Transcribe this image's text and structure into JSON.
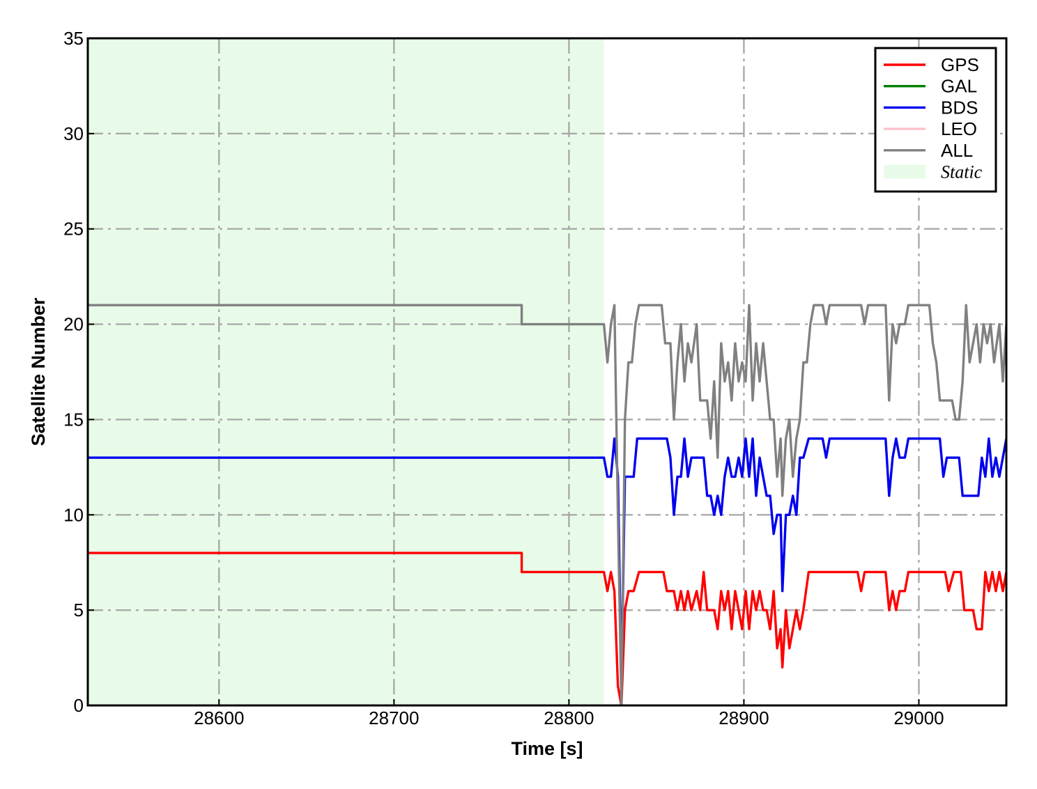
{
  "chart_data": {
    "type": "line",
    "title": "",
    "xlabel": "Time [s]",
    "ylabel": "Satellite Number",
    "xlim": [
      28525,
      29050
    ],
    "ylim": [
      0,
      35
    ],
    "xticks": [
      28600,
      28700,
      28800,
      28900,
      29000
    ],
    "yticks": [
      0,
      5,
      10,
      15,
      20,
      25,
      30,
      35
    ],
    "grid": true,
    "legend_position": "top-right",
    "static_region": {
      "label": "Static",
      "x_start": 28525,
      "x_end": 28820,
      "color": "#e8fbe8"
    },
    "series": [
      {
        "name": "GPS",
        "color": "#ff0000",
        "points": [
          [
            28525,
            8
          ],
          [
            28773,
            8
          ],
          [
            28773,
            7
          ],
          [
            28820,
            7
          ],
          [
            28822,
            6
          ],
          [
            28824,
            7
          ],
          [
            28826,
            6
          ],
          [
            28828,
            1
          ],
          [
            28830,
            0
          ],
          [
            28832,
            5
          ],
          [
            28834,
            6
          ],
          [
            28837,
            6
          ],
          [
            28840,
            7
          ],
          [
            28854,
            7
          ],
          [
            28856,
            6
          ],
          [
            28860,
            6
          ],
          [
            28862,
            5
          ],
          [
            28864,
            6
          ],
          [
            28866,
            5
          ],
          [
            28868,
            6
          ],
          [
            28870,
            5
          ],
          [
            28873,
            6
          ],
          [
            28875,
            5
          ],
          [
            28877,
            7
          ],
          [
            28879,
            5
          ],
          [
            28883,
            5
          ],
          [
            28885,
            4
          ],
          [
            28887,
            6
          ],
          [
            28889,
            5
          ],
          [
            28891,
            6
          ],
          [
            28893,
            4
          ],
          [
            28895,
            6
          ],
          [
            28897,
            5
          ],
          [
            28899,
            4
          ],
          [
            28901,
            6
          ],
          [
            28903,
            4
          ],
          [
            28905,
            6
          ],
          [
            28907,
            5
          ],
          [
            28909,
            6
          ],
          [
            28911,
            5
          ],
          [
            28913,
            5
          ],
          [
            28915,
            4
          ],
          [
            28917,
            6
          ],
          [
            28919,
            3
          ],
          [
            28921,
            4
          ],
          [
            28922,
            2
          ],
          [
            28924,
            5
          ],
          [
            28926,
            3
          ],
          [
            28928,
            4
          ],
          [
            28930,
            5
          ],
          [
            28932,
            4
          ],
          [
            28934,
            5
          ],
          [
            28937,
            7
          ],
          [
            28965,
            7
          ],
          [
            28967,
            6
          ],
          [
            28969,
            7
          ],
          [
            28981,
            7
          ],
          [
            28983,
            5
          ],
          [
            28985,
            6
          ],
          [
            28987,
            5
          ],
          [
            28989,
            6
          ],
          [
            28992,
            6
          ],
          [
            28994,
            7
          ],
          [
            29015,
            7
          ],
          [
            29017,
            6
          ],
          [
            29020,
            7
          ],
          [
            29024,
            7
          ],
          [
            29026,
            5
          ],
          [
            29031,
            5
          ],
          [
            29033,
            4
          ],
          [
            29036,
            4
          ],
          [
            29038,
            7
          ],
          [
            29040,
            6
          ],
          [
            29042,
            7
          ],
          [
            29044,
            6
          ],
          [
            29046,
            7
          ],
          [
            29048,
            6
          ],
          [
            29050,
            7
          ]
        ]
      },
      {
        "name": "GAL",
        "color": "#007f00",
        "points": []
      },
      {
        "name": "BDS",
        "color": "#0000ee",
        "points": [
          [
            28525,
            13
          ],
          [
            28820,
            13
          ],
          [
            28822,
            12
          ],
          [
            28824,
            12
          ],
          [
            28826,
            14
          ],
          [
            28828,
            12
          ],
          [
            28830,
            1
          ],
          [
            28832,
            12
          ],
          [
            28834,
            12
          ],
          [
            28837,
            12
          ],
          [
            28839,
            14
          ],
          [
            28856,
            14
          ],
          [
            28858,
            13
          ],
          [
            28860,
            10
          ],
          [
            28862,
            12
          ],
          [
            28864,
            12
          ],
          [
            28866,
            14
          ],
          [
            28868,
            12
          ],
          [
            28870,
            13
          ],
          [
            28877,
            13
          ],
          [
            28879,
            11
          ],
          [
            28881,
            11
          ],
          [
            28883,
            10
          ],
          [
            28885,
            11
          ],
          [
            28887,
            10
          ],
          [
            28889,
            12
          ],
          [
            28891,
            13
          ],
          [
            28893,
            12
          ],
          [
            28895,
            12
          ],
          [
            28897,
            13
          ],
          [
            28899,
            12
          ],
          [
            28901,
            14
          ],
          [
            28903,
            12
          ],
          [
            28905,
            14
          ],
          [
            28907,
            11
          ],
          [
            28909,
            13
          ],
          [
            28911,
            12
          ],
          [
            28913,
            11
          ],
          [
            28915,
            11
          ],
          [
            28917,
            9
          ],
          [
            28919,
            10
          ],
          [
            28921,
            10
          ],
          [
            28922,
            6
          ],
          [
            28924,
            10
          ],
          [
            28926,
            10
          ],
          [
            28928,
            11
          ],
          [
            28930,
            10
          ],
          [
            28932,
            13
          ],
          [
            28934,
            13
          ],
          [
            28937,
            14
          ],
          [
            28945,
            14
          ],
          [
            28947,
            13
          ],
          [
            28949,
            14
          ],
          [
            28981,
            14
          ],
          [
            28983,
            11
          ],
          [
            28985,
            13
          ],
          [
            28987,
            14
          ],
          [
            28989,
            13
          ],
          [
            28992,
            13
          ],
          [
            28994,
            14
          ],
          [
            29012,
            14
          ],
          [
            29014,
            12
          ],
          [
            29016,
            13
          ],
          [
            29023,
            13
          ],
          [
            29025,
            11
          ],
          [
            29034,
            11
          ],
          [
            29036,
            13
          ],
          [
            29038,
            12
          ],
          [
            29040,
            14
          ],
          [
            29042,
            12
          ],
          [
            29044,
            13
          ],
          [
            29046,
            12
          ],
          [
            29048,
            13
          ],
          [
            29050,
            14
          ]
        ]
      },
      {
        "name": "LEO",
        "color": "#ffc0cb",
        "points": []
      },
      {
        "name": "ALL",
        "color": "#808080",
        "points": [
          [
            28525,
            21
          ],
          [
            28773,
            21
          ],
          [
            28773,
            20
          ],
          [
            28820,
            20
          ],
          [
            28822,
            18
          ],
          [
            28824,
            20
          ],
          [
            28826,
            21
          ],
          [
            28828,
            10
          ],
          [
            28830,
            0
          ],
          [
            28832,
            15
          ],
          [
            28834,
            18
          ],
          [
            28836,
            18
          ],
          [
            28838,
            20
          ],
          [
            28840,
            21
          ],
          [
            28853,
            21
          ],
          [
            28855,
            19
          ],
          [
            28858,
            19
          ],
          [
            28860,
            15
          ],
          [
            28862,
            18
          ],
          [
            28864,
            20
          ],
          [
            28866,
            17
          ],
          [
            28868,
            19
          ],
          [
            28870,
            18
          ],
          [
            28873,
            20
          ],
          [
            28875,
            16
          ],
          [
            28879,
            16
          ],
          [
            28881,
            14
          ],
          [
            28883,
            17
          ],
          [
            28885,
            13
          ],
          [
            28887,
            19
          ],
          [
            28889,
            17
          ],
          [
            28891,
            18
          ],
          [
            28893,
            16
          ],
          [
            28895,
            19
          ],
          [
            28897,
            17
          ],
          [
            28899,
            18
          ],
          [
            28901,
            17
          ],
          [
            28903,
            21
          ],
          [
            28905,
            16
          ],
          [
            28907,
            19
          ],
          [
            28909,
            17
          ],
          [
            28911,
            19
          ],
          [
            28913,
            17
          ],
          [
            28915,
            15
          ],
          [
            28917,
            15
          ],
          [
            28919,
            12
          ],
          [
            28921,
            14
          ],
          [
            28922,
            11
          ],
          [
            28924,
            14
          ],
          [
            28926,
            15
          ],
          [
            28928,
            12
          ],
          [
            28930,
            14
          ],
          [
            28932,
            15
          ],
          [
            28934,
            18
          ],
          [
            28936,
            18
          ],
          [
            28938,
            20
          ],
          [
            28940,
            21
          ],
          [
            28945,
            21
          ],
          [
            28947,
            20
          ],
          [
            28949,
            21
          ],
          [
            28967,
            21
          ],
          [
            28969,
            20
          ],
          [
            28971,
            21
          ],
          [
            28981,
            21
          ],
          [
            28983,
            16
          ],
          [
            28985,
            20
          ],
          [
            28987,
            19
          ],
          [
            28989,
            20
          ],
          [
            28992,
            20
          ],
          [
            28994,
            21
          ],
          [
            29006,
            21
          ],
          [
            29008,
            19
          ],
          [
            29010,
            18
          ],
          [
            29012,
            16
          ],
          [
            29019,
            16
          ],
          [
            29021,
            15
          ],
          [
            29023,
            15
          ],
          [
            29025,
            17
          ],
          [
            29027,
            21
          ],
          [
            29029,
            18
          ],
          [
            29031,
            19
          ],
          [
            29033,
            20
          ],
          [
            29035,
            18
          ],
          [
            29037,
            20
          ],
          [
            29039,
            19
          ],
          [
            29041,
            20
          ],
          [
            29043,
            18
          ],
          [
            29046,
            20
          ],
          [
            29048,
            17
          ],
          [
            29050,
            20
          ]
        ]
      }
    ]
  }
}
